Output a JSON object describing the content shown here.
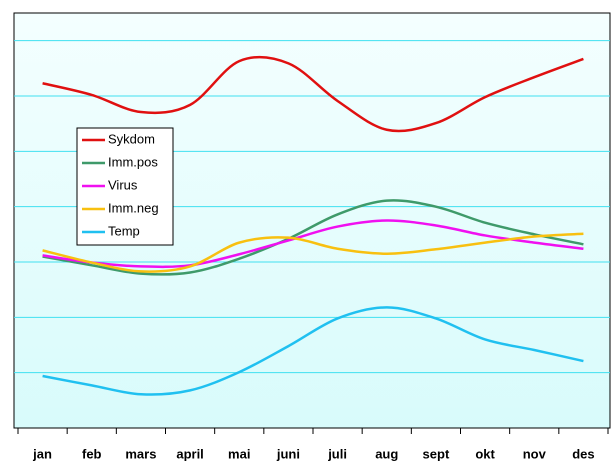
{
  "chart_data": {
    "type": "line",
    "categories": [
      "jan",
      "feb",
      "mars",
      "april",
      "mai",
      "juni",
      "juli",
      "aug",
      "sept",
      "okt",
      "nov",
      "des"
    ],
    "series": [
      {
        "name": "Sykdom",
        "color": "#e01010",
        "values": [
          6.23,
          6.02,
          5.71,
          5.84,
          6.63,
          6.59,
          5.91,
          5.39,
          5.51,
          5.98,
          6.34,
          6.67
        ]
      },
      {
        "name": "Imm.pos",
        "color": "#3f9a6a",
        "values": [
          3.1,
          2.94,
          2.79,
          2.81,
          3.06,
          3.42,
          3.86,
          4.11,
          4.0,
          3.71,
          3.5,
          3.32
        ]
      },
      {
        "name": "Virus",
        "color": "#f010f0",
        "values": [
          3.12,
          2.99,
          2.92,
          2.94,
          3.14,
          3.39,
          3.64,
          3.75,
          3.66,
          3.48,
          3.35,
          3.24
        ]
      },
      {
        "name": "Imm.neg",
        "color": "#f8c010",
        "values": [
          3.21,
          2.99,
          2.83,
          2.92,
          3.35,
          3.44,
          3.24,
          3.15,
          3.23,
          3.35,
          3.46,
          3.51
        ]
      },
      {
        "name": "Temp",
        "color": "#20c0f0",
        "values": [
          0.94,
          0.77,
          0.61,
          0.68,
          1.01,
          1.48,
          1.98,
          2.18,
          1.98,
          1.6,
          1.41,
          1.21
        ]
      }
    ],
    "ylim": [
      0,
      7.5
    ],
    "yticks": [
      1,
      2,
      3,
      4,
      5,
      6,
      7
    ],
    "grid": true,
    "legend": "left"
  }
}
